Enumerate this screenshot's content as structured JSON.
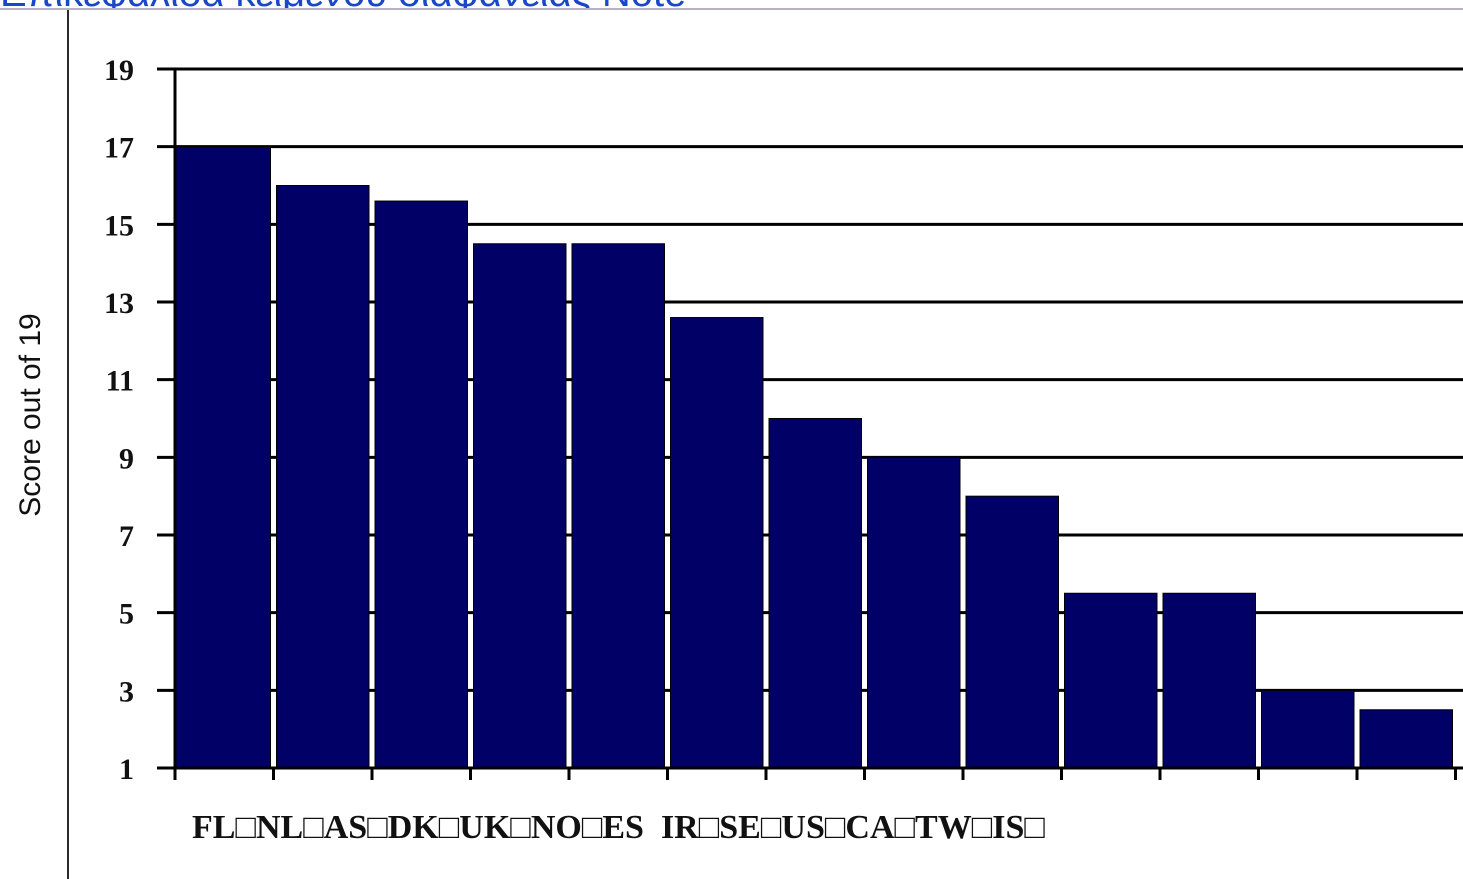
{
  "caption": "Επικεφαλίδα κειμένου διαφάνειας Note",
  "chart_data": {
    "type": "bar",
    "title": "",
    "xlabel": "",
    "ylabel": "Score out of 19",
    "ylim": [
      1,
      19
    ],
    "yticks": [
      1,
      3,
      5,
      7,
      9,
      11,
      13,
      15,
      17,
      19
    ],
    "grid": true,
    "categories": [
      "FL",
      "NL",
      "AS",
      "DK",
      "UK",
      "NO",
      "ES",
      "IR",
      "SE",
      "US",
      "CA",
      "TW",
      "IS"
    ],
    "values": [
      17,
      16,
      15.6,
      14.5,
      14.5,
      12.6,
      10,
      9,
      8,
      5.5,
      5.5,
      3,
      2.5
    ],
    "tick_labels_text": "FL□NL□AS□DK□UK□NO□ES  IR□SE□US□CA□TW□IS□",
    "colors": {
      "bar": "#000066",
      "grid": "#000000",
      "background": "#ffffff"
    }
  }
}
